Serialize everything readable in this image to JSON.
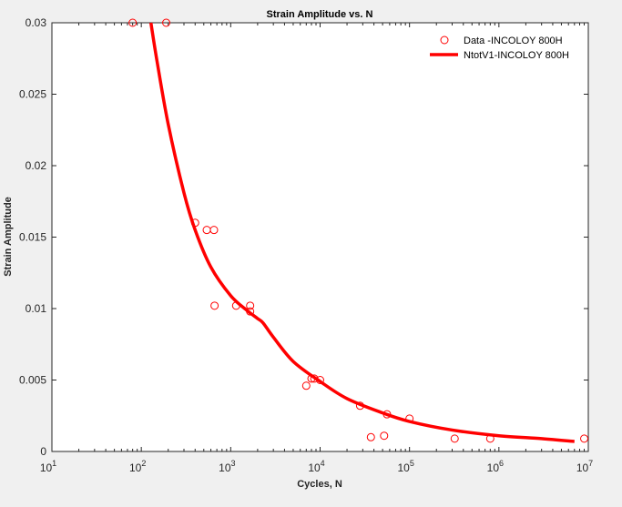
{
  "chart_data": {
    "type": "scatter",
    "title": "Strain Amplitude vs. N",
    "xlabel": "Cycles, N",
    "ylabel": "Strain Amplitude",
    "xscale": "log",
    "xlim": [
      10,
      10000000
    ],
    "ylim": [
      0,
      0.03
    ],
    "x_ticks": [
      10,
      100,
      1000,
      10000,
      100000,
      1000000,
      10000000
    ],
    "x_tick_labels": [
      {
        "base": "10",
        "exp": "1"
      },
      {
        "base": "10",
        "exp": "2"
      },
      {
        "base": "10",
        "exp": "3"
      },
      {
        "base": "10",
        "exp": "4"
      },
      {
        "base": "10",
        "exp": "5"
      },
      {
        "base": "10",
        "exp": "6"
      },
      {
        "base": "10",
        "exp": "7"
      }
    ],
    "y_ticks": [
      0,
      0.005,
      0.01,
      0.015,
      0.02,
      0.025,
      0.03
    ],
    "y_tick_labels": [
      "0",
      "0.005",
      "0.01",
      "0.015",
      "0.02",
      "0.025",
      "0.03"
    ],
    "grid": false,
    "legend_position": "top-right",
    "colors": {
      "series": "#ff0000",
      "axes": "#262626",
      "background": "#ffffff",
      "figure": "#f0f0f0"
    },
    "series": [
      {
        "name": "Data -INCOLOY 800H",
        "kind": "markers",
        "marker": "circle-open",
        "points": [
          [
            80,
            0.03
          ],
          [
            190,
            0.03
          ],
          [
            400,
            0.016
          ],
          [
            540,
            0.0155
          ],
          [
            650,
            0.0155
          ],
          [
            660,
            0.0102
          ],
          [
            1150,
            0.0102
          ],
          [
            1650,
            0.0102
          ],
          [
            1650,
            0.0098
          ],
          [
            7000,
            0.0046
          ],
          [
            8000,
            0.0051
          ],
          [
            8600,
            0.0051
          ],
          [
            10000,
            0.005
          ],
          [
            28000,
            0.0032
          ],
          [
            37000,
            0.001
          ],
          [
            52000,
            0.0011
          ],
          [
            56000,
            0.0026
          ],
          [
            100000,
            0.0023
          ],
          [
            320000,
            0.0009
          ],
          [
            800000,
            0.0009
          ],
          [
            9000000,
            0.0009
          ]
        ]
      },
      {
        "name": "NtotV1-INCOLOY 800H",
        "kind": "line",
        "points": [
          [
            128,
            0.03
          ],
          [
            150,
            0.0273
          ],
          [
            200,
            0.0229
          ],
          [
            300,
            0.0181
          ],
          [
            400,
            0.0155
          ],
          [
            600,
            0.0129
          ],
          [
            1000,
            0.0109
          ],
          [
            1500,
            0.0099
          ],
          [
            2000,
            0.0093
          ],
          [
            2300,
            0.009
          ],
          [
            3000,
            0.008
          ],
          [
            5000,
            0.0063
          ],
          [
            10000,
            0.0049
          ],
          [
            20000,
            0.0037
          ],
          [
            50000,
            0.0027
          ],
          [
            100000,
            0.0021
          ],
          [
            300000,
            0.0015
          ],
          [
            1000000,
            0.0011
          ],
          [
            3000000,
            0.0009
          ],
          [
            7000000,
            0.0007
          ]
        ]
      }
    ]
  }
}
